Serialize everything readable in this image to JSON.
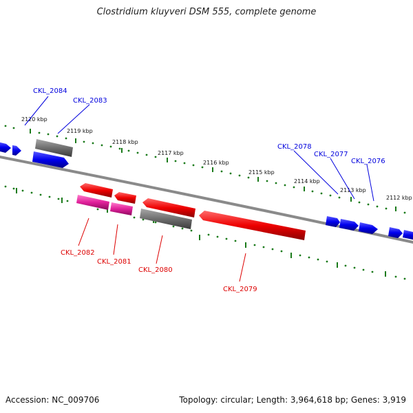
{
  "title": "Clostridium kluyveri DSM 555, complete genome",
  "footer": {
    "accession": "Accession: NC_009706",
    "summary": "Topology: circular; Length: 3,964,618 bp; Genes: 3,919"
  },
  "ticks": [
    "2120 kbp",
    "2119 kbp",
    "2118 kbp",
    "2117 kbp",
    "2116 kbp",
    "2115 kbp",
    "2114 kbp",
    "2113 kbp",
    "2112 kbp"
  ],
  "genes_forward": [
    "CKL_2084",
    "CKL_2083",
    "CKL_2078",
    "CKL_2077",
    "CKL_2076"
  ],
  "genes_reverse": [
    "CKL_2082",
    "CKL_2081",
    "CKL_2080",
    "CKL_2079"
  ],
  "colors": {
    "forward": "#0000ee",
    "reverse": "#ee0000",
    "pink": "#e0209a",
    "gray": "#707070",
    "backbone": "#8a8a8a",
    "dots": "#1a7a1a"
  }
}
